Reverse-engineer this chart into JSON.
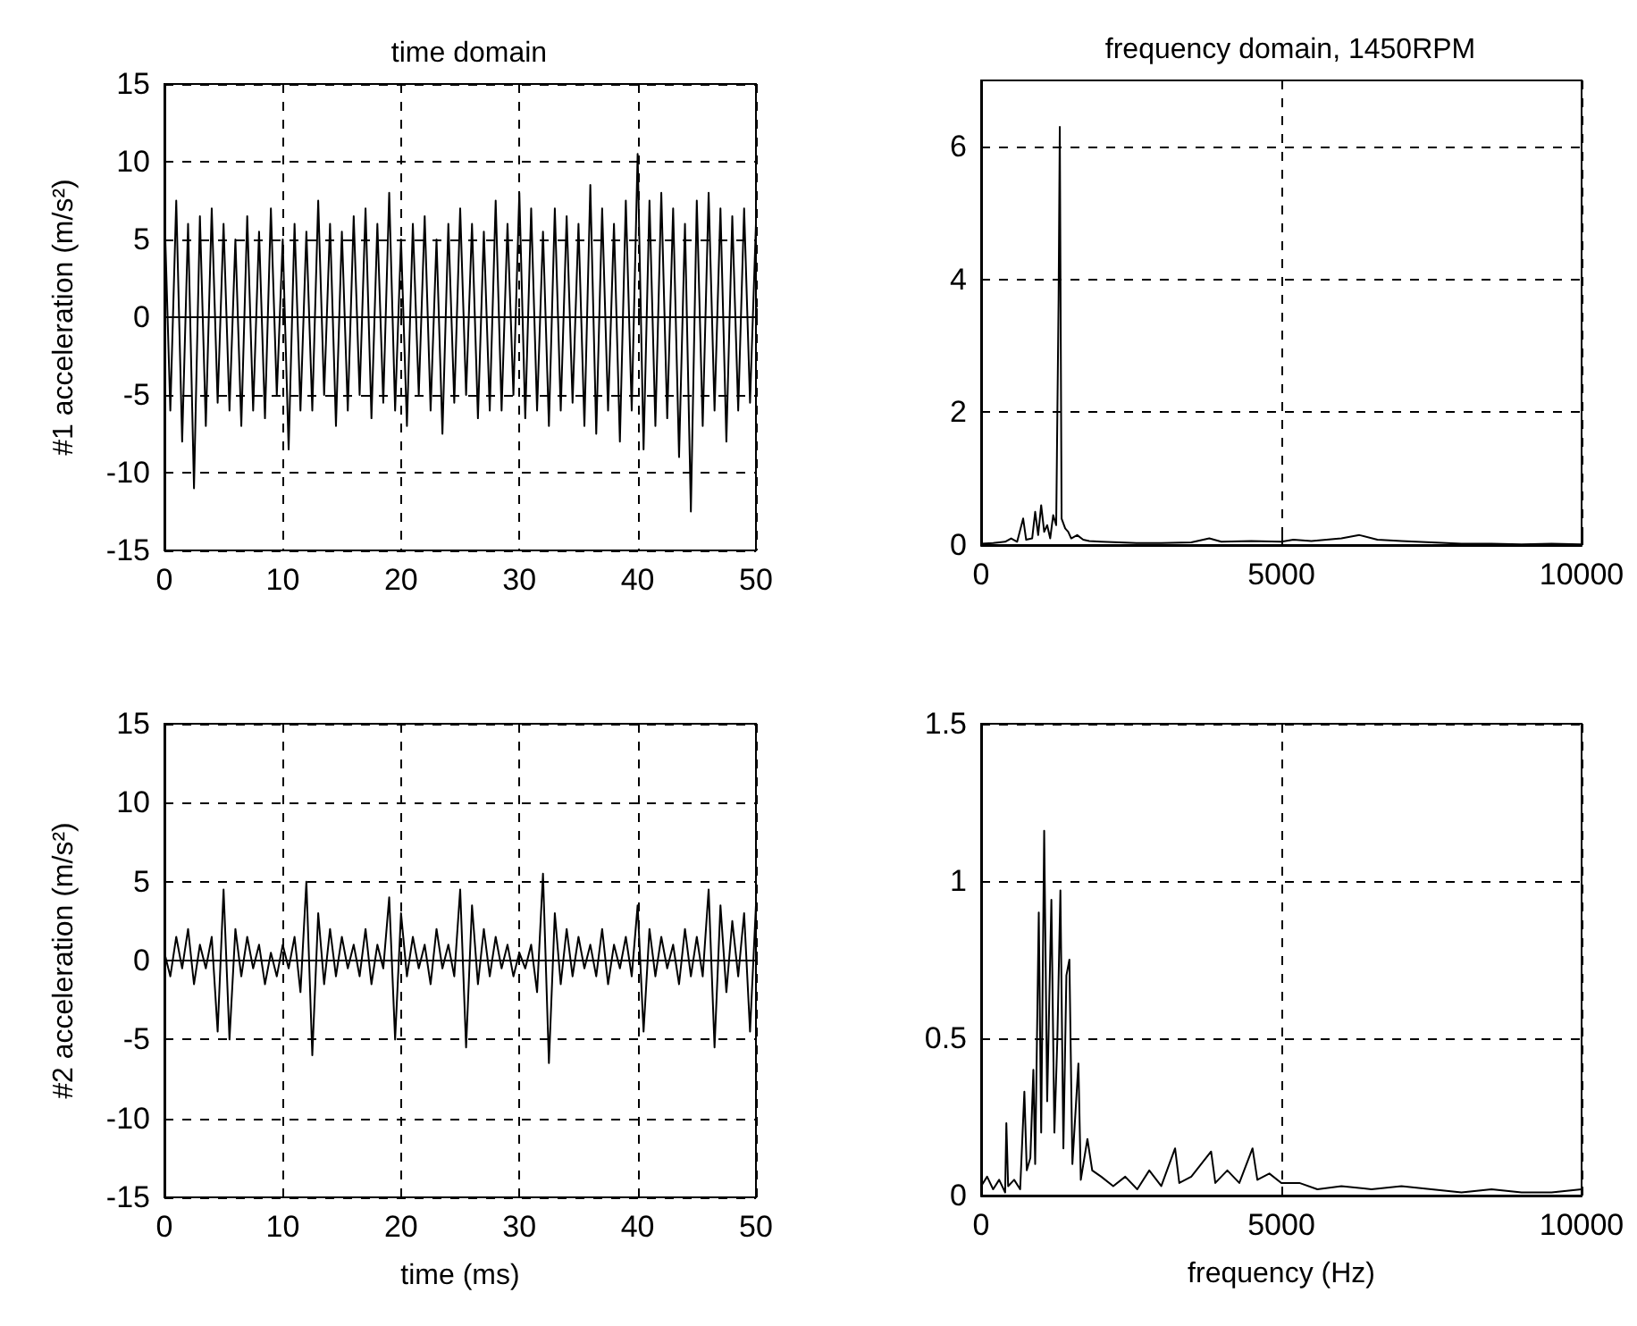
{
  "chart_data": [
    {
      "type": "line",
      "title": "time domain",
      "ylabel": "#1 acceleration (m/s²)",
      "grid": true,
      "marker": "none",
      "line_style": "solid",
      "xlim": [
        0,
        50
      ],
      "xticks": [
        0,
        10,
        20,
        30,
        40,
        50
      ],
      "ylim": [
        -15,
        15
      ],
      "yticks": [
        -15,
        -10,
        -5,
        0,
        5,
        10,
        15
      ],
      "x": [
        0,
        0.5,
        1,
        1.5,
        2,
        2.5,
        3,
        3.5,
        4,
        4.5,
        5,
        5.5,
        6,
        6.5,
        7,
        7.5,
        8,
        8.5,
        9,
        9.5,
        10,
        10.5,
        11,
        11.5,
        12,
        12.5,
        13,
        13.5,
        14,
        14.5,
        15,
        15.5,
        16,
        16.5,
        17,
        17.5,
        18,
        18.5,
        19,
        19.5,
        20,
        20.5,
        21,
        21.5,
        22,
        22.5,
        23,
        23.5,
        24,
        24.5,
        25,
        25.5,
        26,
        26.5,
        27,
        27.5,
        28,
        28.5,
        29,
        29.5,
        30,
        30.5,
        31,
        31.5,
        32,
        32.5,
        33,
        33.5,
        34,
        34.5,
        35,
        35.5,
        36,
        36.5,
        37,
        37.5,
        38,
        38.5,
        39,
        39.5,
        40,
        40.5,
        41,
        41.5,
        42,
        42.5,
        43,
        43.5,
        44,
        44.5,
        45,
        45.5,
        46,
        46.5,
        47,
        47.5,
        48,
        48.5,
        49,
        49.5,
        50
      ],
      "series": [
        {
          "color": "#000000",
          "values": [
            7,
            -6,
            7.5,
            -8,
            6,
            -11,
            6.5,
            -7,
            7,
            -5.5,
            6,
            -6,
            5,
            -7,
            6.5,
            -6,
            5.5,
            -6.5,
            7,
            -5,
            5,
            -8.5,
            6,
            -6,
            5.5,
            -6,
            7.5,
            -5,
            6,
            -7,
            5.5,
            -6,
            6.5,
            -5,
            7,
            -6.5,
            6,
            -5.5,
            8,
            -6,
            5,
            -7,
            6,
            -5,
            6.5,
            -6,
            5,
            -7.5,
            6,
            -5.5,
            7,
            -5,
            6,
            -6.5,
            5.5,
            -6,
            7.5,
            -6,
            6,
            -5,
            8,
            -6.5,
            7,
            -6,
            5.5,
            -7,
            7,
            -6,
            6.5,
            -5.5,
            6,
            -7,
            8.5,
            -7.5,
            7,
            -6,
            6,
            -8,
            7.5,
            -6,
            10.5,
            -8.5,
            7.5,
            -7,
            8,
            -6.5,
            7,
            -9,
            6,
            -12.5,
            7.5,
            -7,
            8,
            -6,
            7,
            -8,
            6.5,
            -6,
            7,
            -5.5,
            6
          ]
        }
      ]
    },
    {
      "type": "line",
      "title": "frequency domain, 1450RPM",
      "grid": true,
      "marker": "none",
      "line_style": "solid",
      "xlim": [
        0,
        10000
      ],
      "xticks": [
        0,
        5000,
        10000
      ],
      "ylim": [
        0,
        7
      ],
      "yticks": [
        0,
        2,
        4,
        6
      ],
      "x": [
        0,
        200,
        400,
        500,
        600,
        700,
        750,
        850,
        900,
        950,
        1000,
        1050,
        1100,
        1150,
        1200,
        1250,
        1290,
        1310,
        1340,
        1400,
        1450,
        1500,
        1600,
        1700,
        1800,
        2000,
        2300,
        2600,
        3000,
        3500,
        3800,
        4000,
        4500,
        5000,
        5200,
        5500,
        6000,
        6300,
        6600,
        7000,
        7500,
        8000,
        8500,
        9000,
        9500,
        10000
      ],
      "series": [
        {
          "color": "#000000",
          "values": [
            0.02,
            0.03,
            0.05,
            0.1,
            0.05,
            0.4,
            0.08,
            0.1,
            0.5,
            0.15,
            0.6,
            0.2,
            0.3,
            0.1,
            0.45,
            0.3,
            3.7,
            6.3,
            0.4,
            0.25,
            0.2,
            0.1,
            0.15,
            0.08,
            0.06,
            0.05,
            0.04,
            0.03,
            0.03,
            0.04,
            0.1,
            0.05,
            0.06,
            0.05,
            0.08,
            0.06,
            0.1,
            0.15,
            0.08,
            0.06,
            0.04,
            0.02,
            0.02,
            0.01,
            0.02,
            0.01
          ]
        }
      ]
    },
    {
      "type": "line",
      "xlabel": "time (ms)",
      "ylabel": "#2 acceleration (m/s²)",
      "grid": true,
      "marker": "none",
      "line_style": "solid",
      "xlim": [
        0,
        50
      ],
      "xticks": [
        0,
        10,
        20,
        30,
        40,
        50
      ],
      "ylim": [
        -15,
        15
      ],
      "yticks": [
        -15,
        -10,
        -5,
        0,
        5,
        10,
        15
      ],
      "x": [
        0,
        0.5,
        1,
        1.5,
        2,
        2.5,
        3,
        3.5,
        4,
        4.5,
        5,
        5.5,
        6,
        6.5,
        7,
        7.5,
        8,
        8.5,
        9,
        9.5,
        10,
        10.5,
        11,
        11.5,
        12,
        12.5,
        13,
        13.5,
        14,
        14.5,
        15,
        15.5,
        16,
        16.5,
        17,
        17.5,
        18,
        18.5,
        19,
        19.5,
        20,
        20.5,
        21,
        21.5,
        22,
        22.5,
        23,
        23.5,
        24,
        24.5,
        25,
        25.5,
        26,
        26.5,
        27,
        27.5,
        28,
        28.5,
        29,
        29.5,
        30,
        30.5,
        31,
        31.5,
        32,
        32.5,
        33,
        33.5,
        34,
        34.5,
        35,
        35.5,
        36,
        36.5,
        37,
        37.5,
        38,
        38.5,
        39,
        39.5,
        40,
        40.5,
        41,
        41.5,
        42,
        42.5,
        43,
        43.5,
        44,
        44.5,
        45,
        45.5,
        46,
        46.5,
        47,
        47.5,
        48,
        48.5,
        49,
        49.5,
        50
      ],
      "series": [
        {
          "color": "#000000",
          "values": [
            0.5,
            -1,
            1.5,
            -0.5,
            2,
            -1.5,
            1,
            -0.5,
            1.5,
            -4.5,
            4.5,
            -5,
            2,
            -1,
            1.5,
            -0.5,
            1,
            -1.5,
            0.5,
            -1,
            1,
            -0.5,
            1.5,
            -2,
            5,
            -6,
            3,
            -1.5,
            2,
            -1,
            1.5,
            -0.5,
            1,
            -1,
            2,
            -1.5,
            1,
            -0.5,
            4,
            -5,
            3,
            -1,
            1.5,
            -0.5,
            1,
            -1.5,
            2,
            -0.5,
            1,
            -1,
            4.5,
            -5.5,
            3.5,
            -1.5,
            2,
            -1,
            1.5,
            -0.5,
            1,
            -1,
            0.5,
            -0.5,
            1,
            -2,
            5.5,
            -6.5,
            3,
            -1.5,
            2,
            -1,
            1.5,
            -0.5,
            1,
            -1,
            2,
            -1.5,
            1,
            -0.5,
            1.5,
            -1,
            3.5,
            -4.5,
            2,
            -1,
            1.5,
            -0.5,
            1,
            -1.5,
            2,
            -1,
            1.5,
            -1,
            4.5,
            -5.5,
            3.5,
            -2,
            2.5,
            -1,
            3,
            -4.5,
            3.5
          ]
        }
      ]
    },
    {
      "type": "line",
      "xlabel": "frequency (Hz)",
      "grid": true,
      "marker": "none",
      "line_style": "solid",
      "xlim": [
        0,
        10000
      ],
      "xticks": [
        0,
        5000,
        10000
      ],
      "ylim": [
        0,
        1.5
      ],
      "yticks": [
        0,
        0.5,
        1,
        1.5
      ],
      "x": [
        0,
        100,
        200,
        300,
        400,
        420,
        450,
        550,
        650,
        720,
        760,
        820,
        870,
        900,
        960,
        1000,
        1050,
        1100,
        1170,
        1220,
        1270,
        1320,
        1370,
        1420,
        1470,
        1520,
        1620,
        1660,
        1770,
        1850,
        2000,
        2200,
        2400,
        2600,
        2800,
        3000,
        3230,
        3300,
        3500,
        3830,
        3900,
        4100,
        4300,
        4520,
        4600,
        4800,
        5000,
        5300,
        5600,
        6000,
        6500,
        7000,
        7500,
        8000,
        8500,
        9000,
        9500,
        10000
      ],
      "series": [
        {
          "color": "#000000",
          "values": [
            0.03,
            0.06,
            0.02,
            0.05,
            0.01,
            0.23,
            0.03,
            0.05,
            0.02,
            0.33,
            0.08,
            0.12,
            0.4,
            0.1,
            0.9,
            0.2,
            1.16,
            0.3,
            0.94,
            0.2,
            0.5,
            0.97,
            0.15,
            0.7,
            0.75,
            0.1,
            0.42,
            0.05,
            0.18,
            0.08,
            0.06,
            0.03,
            0.06,
            0.02,
            0.08,
            0.03,
            0.15,
            0.04,
            0.06,
            0.14,
            0.04,
            0.08,
            0.04,
            0.15,
            0.05,
            0.07,
            0.04,
            0.04,
            0.02,
            0.03,
            0.02,
            0.03,
            0.02,
            0.01,
            0.02,
            0.01,
            0.01,
            0.02
          ]
        }
      ]
    }
  ]
}
